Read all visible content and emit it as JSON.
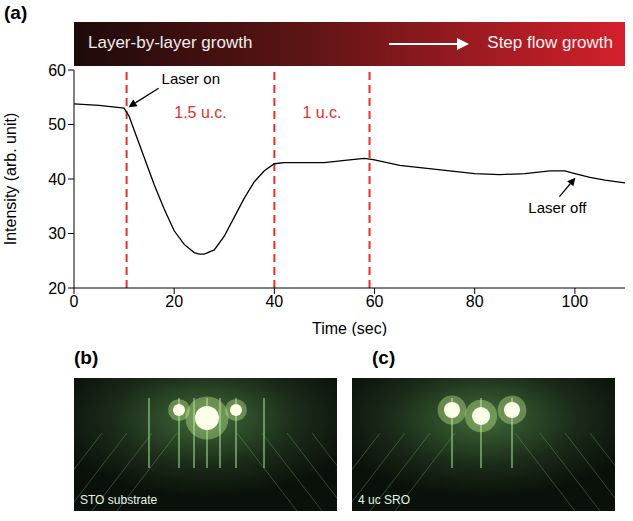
{
  "panel_labels": [
    "(a)",
    "(b)",
    "(c)"
  ],
  "phase_bar": {
    "from": "Layer-by-layer growth",
    "to": "Step flow growth"
  },
  "chart_data": {
    "type": "line",
    "x_label": "Time (sec)",
    "y_label": "Intensity (arb. unit)",
    "x": [
      0,
      5,
      10,
      11,
      12,
      14,
      16,
      18,
      20,
      22,
      24,
      25,
      26,
      28,
      30,
      32,
      34,
      36,
      38,
      40,
      42,
      45,
      50,
      55,
      58,
      60,
      65,
      70,
      75,
      80,
      85,
      90,
      95,
      98,
      100,
      103,
      106,
      110
    ],
    "values": [
      53.8,
      53.5,
      53,
      51.5,
      49,
      44,
      39,
      34.5,
      30.5,
      28,
      26.5,
      26.2,
      26.2,
      27,
      29.5,
      33,
      36.5,
      39.5,
      41.5,
      42.8,
      43,
      43,
      43,
      43.5,
      43.8,
      43.5,
      42.5,
      42,
      41.5,
      41,
      40.8,
      41,
      41.5,
      41.5,
      41,
      40.3,
      39.8,
      39.3
    ],
    "color": "#000000",
    "xlim": [
      0,
      110
    ],
    "ylim": [
      20,
      60
    ],
    "xticks": [
      0,
      20,
      40,
      60,
      80,
      100
    ],
    "yticks": [
      20,
      30,
      40,
      50,
      60
    ],
    "grid": false,
    "vlines": [
      10.5,
      40,
      59
    ],
    "vline_color": "#e8302a",
    "regions": [
      {
        "label": "1.5 u.c.",
        "from": 10.5,
        "to": 40
      },
      {
        "label": "1 u.c.",
        "from": 40,
        "to": 59
      }
    ],
    "annotations": [
      {
        "text": "Laser on",
        "x": 10.5,
        "y": 53
      },
      {
        "text": "Laser off",
        "x": 100.5,
        "y": 40.8
      }
    ]
  },
  "images": [
    {
      "panel": "(b)",
      "label": "STO substrate"
    },
    {
      "panel": "(c)",
      "label": "4 uc SRO"
    }
  ]
}
